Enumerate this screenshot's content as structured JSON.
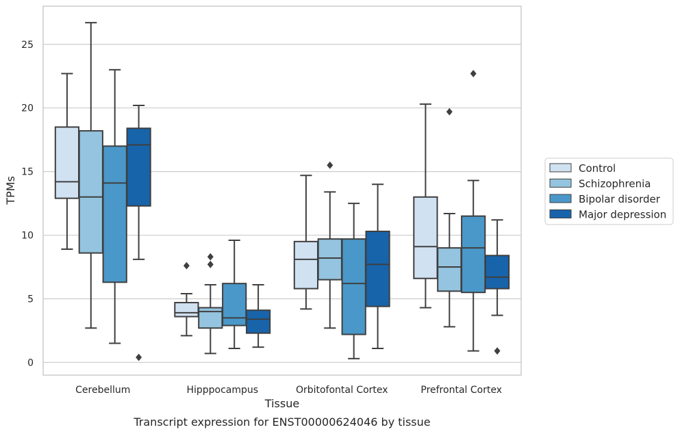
{
  "chart_data": {
    "type": "box",
    "title": "",
    "caption": "Transcript expression for ENST00000624046 by tissue",
    "xlabel": "Tissue",
    "ylabel": "TPMs",
    "ylim": [
      -1,
      28
    ],
    "yticks": [
      0,
      5,
      10,
      15,
      20,
      25
    ],
    "grid": "horizontal",
    "legend_position": "right",
    "categories": [
      "Cerebellum",
      "Hipppocampus",
      "Orbitofontal Cortex",
      "Prefrontal Cortex"
    ],
    "series": [
      {
        "name": "Control",
        "color": "#d0e1f2",
        "boxes": [
          {
            "whislo": 8.9,
            "q1": 12.9,
            "med": 14.2,
            "q3": 18.5,
            "whishi": 22.7,
            "fliers": []
          },
          {
            "whislo": 2.1,
            "q1": 3.6,
            "med": 3.9,
            "q3": 4.7,
            "whishi": 5.4,
            "fliers": [
              7.6
            ]
          },
          {
            "whislo": 4.2,
            "q1": 5.8,
            "med": 8.1,
            "q3": 9.5,
            "whishi": 14.7,
            "fliers": []
          },
          {
            "whislo": 4.3,
            "q1": 6.6,
            "med": 9.1,
            "q3": 13.0,
            "whishi": 20.3,
            "fliers": []
          }
        ]
      },
      {
        "name": "Schizophrenia",
        "color": "#94c4df",
        "boxes": [
          {
            "whislo": 2.7,
            "q1": 8.6,
            "med": 13.0,
            "q3": 18.2,
            "whishi": 26.7,
            "fliers": []
          },
          {
            "whislo": 0.7,
            "q1": 2.7,
            "med": 4.0,
            "q3": 4.3,
            "whishi": 6.1,
            "fliers": [
              7.7,
              8.3
            ]
          },
          {
            "whislo": 2.7,
            "q1": 6.5,
            "med": 8.2,
            "q3": 9.7,
            "whishi": 13.4,
            "fliers": [
              15.5
            ]
          },
          {
            "whislo": 2.8,
            "q1": 5.6,
            "med": 7.5,
            "q3": 9.0,
            "whishi": 11.7,
            "fliers": [
              19.7
            ]
          }
        ]
      },
      {
        "name": "Bipolar disorder",
        "color": "#4a98c9",
        "boxes": [
          {
            "whislo": 1.5,
            "q1": 6.3,
            "med": 14.1,
            "q3": 17.0,
            "whishi": 23.0,
            "fliers": []
          },
          {
            "whislo": 1.1,
            "q1": 2.9,
            "med": 3.5,
            "q3": 6.2,
            "whishi": 9.6,
            "fliers": []
          },
          {
            "whislo": 0.3,
            "q1": 2.2,
            "med": 6.2,
            "q3": 9.7,
            "whishi": 12.5,
            "fliers": []
          },
          {
            "whislo": 0.9,
            "q1": 5.5,
            "med": 9.0,
            "q3": 11.5,
            "whishi": 14.3,
            "fliers": [
              22.7
            ]
          }
        ]
      },
      {
        "name": "Major depression",
        "color": "#1764ab",
        "boxes": [
          {
            "whislo": 8.1,
            "q1": 12.3,
            "med": 17.1,
            "q3": 18.4,
            "whishi": 20.2,
            "fliers": [
              0.4
            ]
          },
          {
            "whislo": 1.2,
            "q1": 2.3,
            "med": 3.4,
            "q3": 4.1,
            "whishi": 6.1,
            "fliers": []
          },
          {
            "whislo": 1.1,
            "q1": 4.4,
            "med": 7.7,
            "q3": 10.3,
            "whishi": 14.0,
            "fliers": []
          },
          {
            "whislo": 3.7,
            "q1": 5.8,
            "med": 6.7,
            "q3": 8.4,
            "whishi": 11.2,
            "fliers": [
              0.9
            ]
          }
        ]
      }
    ]
  }
}
